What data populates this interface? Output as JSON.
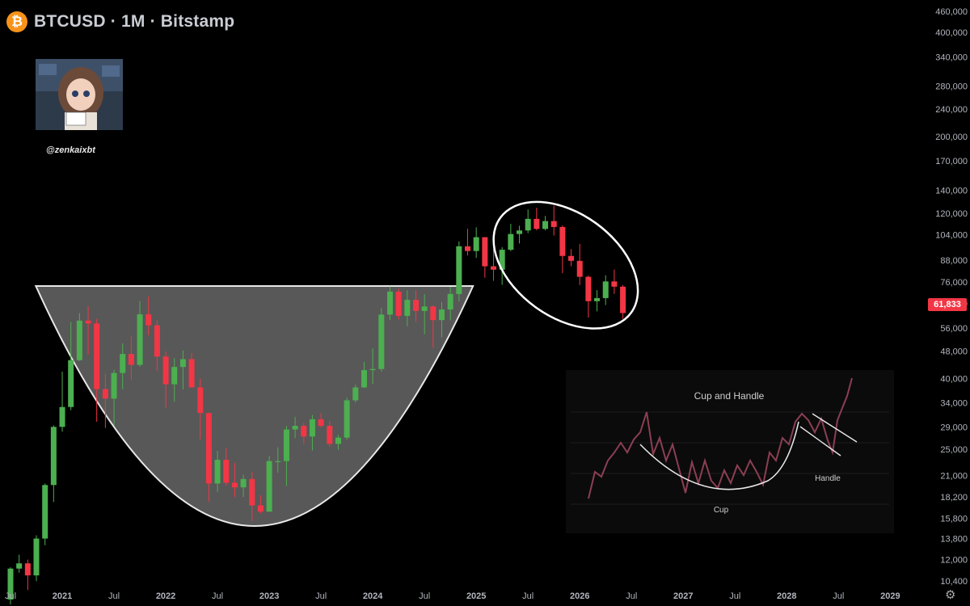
{
  "header": {
    "symbol_title": "BTCUSD · 1M · Bitstamp",
    "logo_glyph": "₿"
  },
  "watermark": {
    "handle": "@zenkaixbt"
  },
  "last_price_label": "61,833",
  "colors": {
    "up": "#4caf50",
    "down": "#f23645",
    "background": "#000000",
    "overlay": "#6e6e6e"
  },
  "chart_data": {
    "type": "candlestick",
    "interval": "1M",
    "scale": "log",
    "ylim": [
      9500,
      470000
    ],
    "y_ticks": [
      "460,000",
      "400,000",
      "340,000",
      "280,000",
      "240,000",
      "200,000",
      "170,000",
      "140,000",
      "120,000",
      "104,000",
      "88,000",
      "76,000",
      "66,000",
      "56,000",
      "48,000",
      "40,000",
      "34,000",
      "29,000",
      "25,000",
      "21,000",
      "18,200",
      "15,800",
      "13,800",
      "12,000",
      "10,400"
    ],
    "x_ticks": [
      "Jul",
      "2021",
      "Jul",
      "2022",
      "Jul",
      "2023",
      "Jul",
      "2024",
      "Jul",
      "2025",
      "Jul",
      "2026",
      "Jul",
      "2027",
      "Jul",
      "2028",
      "Jul",
      "2029"
    ],
    "candles": [
      {
        "t": "2020-07",
        "o": 9200,
        "h": 11400,
        "l": 8900,
        "c": 11300
      },
      {
        "t": "2020-08",
        "o": 11300,
        "h": 12400,
        "l": 11000,
        "c": 11700
      },
      {
        "t": "2020-09",
        "o": 11700,
        "h": 12000,
        "l": 9800,
        "c": 10800
      },
      {
        "t": "2020-10",
        "o": 10800,
        "h": 14100,
        "l": 10400,
        "c": 13800
      },
      {
        "t": "2020-11",
        "o": 13800,
        "h": 19900,
        "l": 13200,
        "c": 19700
      },
      {
        "t": "2020-12",
        "o": 19700,
        "h": 29300,
        "l": 17600,
        "c": 29000
      },
      {
        "t": "2021-01",
        "o": 29000,
        "h": 41900,
        "l": 28100,
        "c": 33100
      },
      {
        "t": "2021-02",
        "o": 33100,
        "h": 58300,
        "l": 32400,
        "c": 45200
      },
      {
        "t": "2021-03",
        "o": 45200,
        "h": 61800,
        "l": 45000,
        "c": 58800
      },
      {
        "t": "2021-04",
        "o": 58800,
        "h": 64800,
        "l": 47000,
        "c": 57700
      },
      {
        "t": "2021-05",
        "o": 57700,
        "h": 59500,
        "l": 30000,
        "c": 37300
      },
      {
        "t": "2021-06",
        "o": 37300,
        "h": 41300,
        "l": 28800,
        "c": 35000
      },
      {
        "t": "2021-07",
        "o": 35000,
        "h": 42400,
        "l": 29300,
        "c": 41500
      },
      {
        "t": "2021-08",
        "o": 41500,
        "h": 50500,
        "l": 37300,
        "c": 47100
      },
      {
        "t": "2021-09",
        "o": 47100,
        "h": 52900,
        "l": 39600,
        "c": 43800
      },
      {
        "t": "2021-10",
        "o": 43800,
        "h": 67000,
        "l": 43300,
        "c": 61300
      },
      {
        "t": "2021-11",
        "o": 61300,
        "h": 69000,
        "l": 53300,
        "c": 57000
      },
      {
        "t": "2021-12",
        "o": 57000,
        "h": 59100,
        "l": 42000,
        "c": 46300
      },
      {
        "t": "2022-01",
        "o": 46300,
        "h": 47900,
        "l": 32900,
        "c": 38500
      },
      {
        "t": "2022-02",
        "o": 38500,
        "h": 45800,
        "l": 34300,
        "c": 43200
      },
      {
        "t": "2022-03",
        "o": 43200,
        "h": 48200,
        "l": 37200,
        "c": 45500
      },
      {
        "t": "2022-04",
        "o": 45500,
        "h": 47400,
        "l": 37700,
        "c": 37700
      },
      {
        "t": "2022-05",
        "o": 37700,
        "h": 40000,
        "l": 26700,
        "c": 31800
      },
      {
        "t": "2022-06",
        "o": 31800,
        "h": 31900,
        "l": 17600,
        "c": 19900
      },
      {
        "t": "2022-07",
        "o": 19900,
        "h": 24700,
        "l": 18800,
        "c": 23300
      },
      {
        "t": "2022-08",
        "o": 23300,
        "h": 25200,
        "l": 19600,
        "c": 20000
      },
      {
        "t": "2022-09",
        "o": 20000,
        "h": 22800,
        "l": 18200,
        "c": 19400
      },
      {
        "t": "2022-10",
        "o": 19400,
        "h": 21100,
        "l": 18200,
        "c": 20500
      },
      {
        "t": "2022-11",
        "o": 20500,
        "h": 21500,
        "l": 15500,
        "c": 17200
      },
      {
        "t": "2022-12",
        "o": 17200,
        "h": 18400,
        "l": 16300,
        "c": 16500
      },
      {
        "t": "2023-01",
        "o": 16500,
        "h": 23900,
        "l": 16500,
        "c": 23100
      },
      {
        "t": "2023-02",
        "o": 23100,
        "h": 25300,
        "l": 21400,
        "c": 23100
      },
      {
        "t": "2023-03",
        "o": 23100,
        "h": 29200,
        "l": 19600,
        "c": 28500
      },
      {
        "t": "2023-04",
        "o": 28500,
        "h": 31000,
        "l": 26900,
        "c": 29200
      },
      {
        "t": "2023-05",
        "o": 29200,
        "h": 29800,
        "l": 25800,
        "c": 27200
      },
      {
        "t": "2023-06",
        "o": 27200,
        "h": 31400,
        "l": 24800,
        "c": 30500
      },
      {
        "t": "2023-07",
        "o": 30500,
        "h": 31800,
        "l": 28900,
        "c": 29200
      },
      {
        "t": "2023-08",
        "o": 29200,
        "h": 30200,
        "l": 25400,
        "c": 25900
      },
      {
        "t": "2023-09",
        "o": 25900,
        "h": 27500,
        "l": 24900,
        "c": 27000
      },
      {
        "t": "2023-10",
        "o": 27000,
        "h": 35200,
        "l": 26600,
        "c": 34600
      },
      {
        "t": "2023-11",
        "o": 34600,
        "h": 38400,
        "l": 34100,
        "c": 37700
      },
      {
        "t": "2023-12",
        "o": 37700,
        "h": 44700,
        "l": 37600,
        "c": 42300
      },
      {
        "t": "2024-01",
        "o": 42300,
        "h": 48900,
        "l": 38600,
        "c": 42600
      },
      {
        "t": "2024-02",
        "o": 42600,
        "h": 64000,
        "l": 41900,
        "c": 61200
      },
      {
        "t": "2024-03",
        "o": 61200,
        "h": 73800,
        "l": 59000,
        "c": 71300
      },
      {
        "t": "2024-04",
        "o": 71300,
        "h": 72800,
        "l": 59200,
        "c": 60700
      },
      {
        "t": "2024-05",
        "o": 60700,
        "h": 71900,
        "l": 56600,
        "c": 67500
      },
      {
        "t": "2024-06",
        "o": 67500,
        "h": 71900,
        "l": 58500,
        "c": 62700
      },
      {
        "t": "2024-07",
        "o": 62700,
        "h": 70000,
        "l": 53700,
        "c": 64600
      },
      {
        "t": "2024-08",
        "o": 64600,
        "h": 65000,
        "l": 49100,
        "c": 59000
      },
      {
        "t": "2024-09",
        "o": 59000,
        "h": 66500,
        "l": 52600,
        "c": 63300
      },
      {
        "t": "2024-10",
        "o": 63300,
        "h": 73600,
        "l": 58900,
        "c": 70200
      },
      {
        "t": "2024-11",
        "o": 70200,
        "h": 99600,
        "l": 66800,
        "c": 96400
      },
      {
        "t": "2024-12",
        "o": 96400,
        "h": 108300,
        "l": 90700,
        "c": 93400
      },
      {
        "t": "2025-01",
        "o": 93400,
        "h": 109400,
        "l": 89200,
        "c": 102400
      },
      {
        "t": "2025-02",
        "o": 102400,
        "h": 102500,
        "l": 78200,
        "c": 84400
      },
      {
        "t": "2025-03",
        "o": 84400,
        "h": 95000,
        "l": 76600,
        "c": 82500
      },
      {
        "t": "2025-04",
        "o": 82500,
        "h": 95800,
        "l": 74600,
        "c": 94200
      },
      {
        "t": "2025-05",
        "o": 94200,
        "h": 111900,
        "l": 93300,
        "c": 104600
      },
      {
        "t": "2025-06",
        "o": 104600,
        "h": 110500,
        "l": 98200,
        "c": 107100
      },
      {
        "t": "2025-07",
        "o": 107100,
        "h": 123200,
        "l": 105200,
        "c": 115700
      },
      {
        "t": "2025-08",
        "o": 115700,
        "h": 124500,
        "l": 107300,
        "c": 108200
      },
      {
        "t": "2025-09",
        "o": 108200,
        "h": 117900,
        "l": 107200,
        "c": 114000
      },
      {
        "t": "2025-10",
        "o": 114000,
        "h": 126200,
        "l": 103500,
        "c": 109600
      },
      {
        "t": "2025-11",
        "o": 109600,
        "h": 110700,
        "l": 80600,
        "c": 90400
      },
      {
        "t": "2025-12",
        "o": 90400,
        "h": 94600,
        "l": 84400,
        "c": 87500
      },
      {
        "t": "2026-01",
        "o": 87500,
        "h": 97900,
        "l": 74500,
        "c": 78700
      },
      {
        "t": "2026-02",
        "o": 78700,
        "h": 79300,
        "l": 60000,
        "c": 66900
      },
      {
        "t": "2026-03",
        "o": 66900,
        "h": 72000,
        "l": 62500,
        "c": 68300
      },
      {
        "t": "2026-04",
        "o": 68300,
        "h": 79500,
        "l": 65200,
        "c": 76300
      },
      {
        "t": "2026-05",
        "o": 76300,
        "h": 82500,
        "l": 70200,
        "c": 73700
      },
      {
        "t": "2026-06",
        "o": 73700,
        "h": 74500,
        "l": 59500,
        "c": 61833
      }
    ],
    "overlays": {
      "cup": {
        "start": "2020-12",
        "end": "2024-10",
        "rim_price": 74000,
        "bottom_price": 15000
      },
      "circle": {
        "from": "2025-04",
        "to": "2026-06"
      },
      "inset_image": {
        "title": "Cup and Handle",
        "labels": [
          "Cup",
          "Handle"
        ]
      }
    },
    "last_price": 61833
  }
}
